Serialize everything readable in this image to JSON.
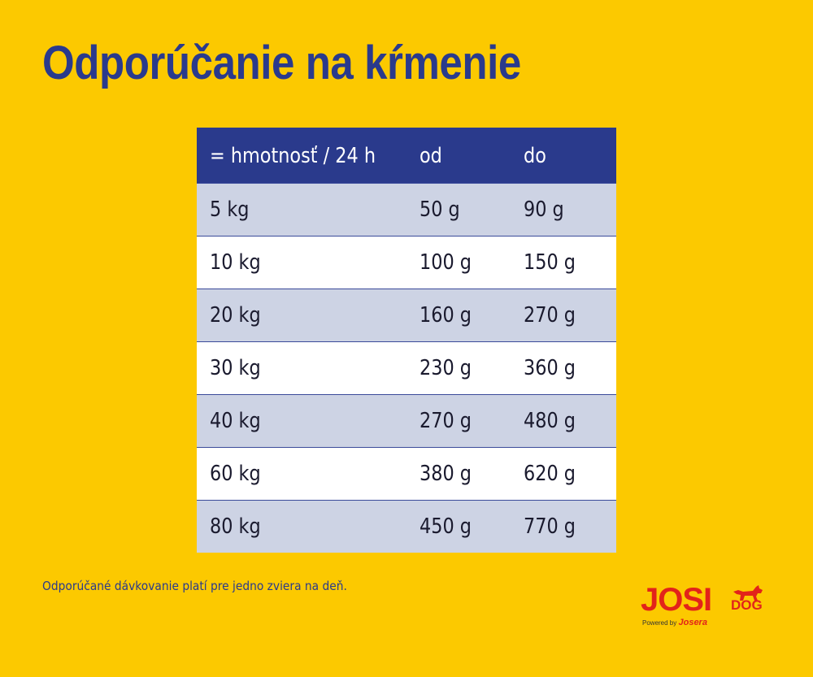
{
  "title": "Odporúčanie na kŕmenie",
  "table": {
    "headers": [
      "= hmotnosť / 24 h",
      "od",
      "do"
    ],
    "rows": [
      [
        "5 kg",
        "50 g",
        "90 g"
      ],
      [
        "10 kg",
        "100 g",
        "150 g"
      ],
      [
        "20 kg",
        "160 g",
        "270 g"
      ],
      [
        "30 kg",
        "230 g",
        "360 g"
      ],
      [
        "40 kg",
        "270 g",
        "480 g"
      ],
      [
        "60 kg",
        "380 g",
        "620 g"
      ],
      [
        "80 kg",
        "450 g",
        "770 g"
      ]
    ]
  },
  "note": "Odporúčané dávkovanie platí pre jedno zviera na deň.",
  "logo": {
    "main": "JOSI",
    "sub": "DOG",
    "powered_by": "Powered by",
    "brand": "Josera",
    "icon": "dog-icon"
  },
  "colors": {
    "background": "#fcc900",
    "navy": "#2a3a8c",
    "row_shade": "#cdd3e4",
    "logo_red": "#e2231a"
  }
}
